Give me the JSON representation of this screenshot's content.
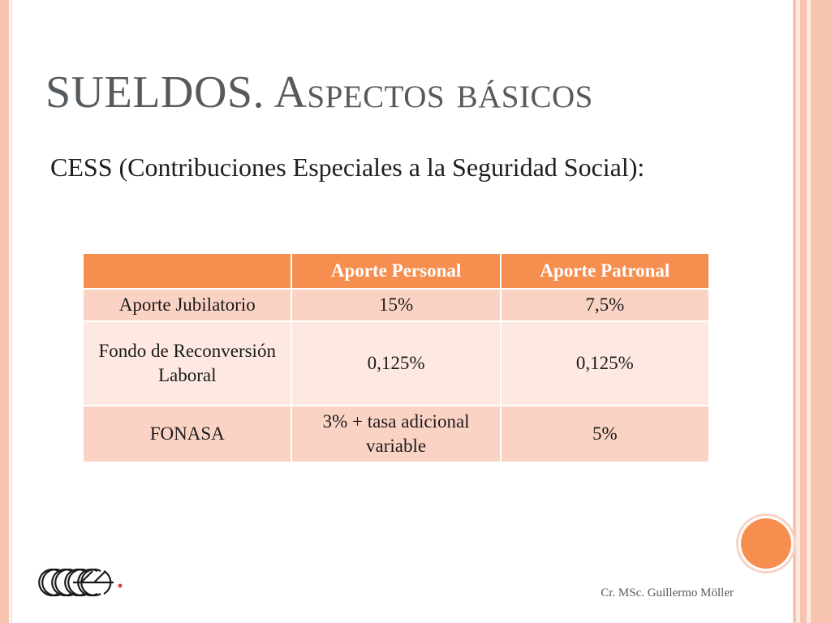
{
  "slide": {
    "title_main": "SUELDOS.",
    "title_first_letter": "A",
    "title_rest": "spectos básicos",
    "subtitle": "CESS (Contribuciones Especiales a la Seguridad Social):",
    "footer": "Cr. MSc. Guillermo Möller"
  },
  "table": {
    "headers": [
      "",
      "Aporte Personal",
      "Aporte Patronal"
    ],
    "rows": [
      [
        "Aporte Jubilatorio",
        "15%",
        "7,5%"
      ],
      [
        "Fondo de Reconversión Laboral",
        "0,125%",
        "0,125%"
      ],
      [
        "FONASA",
        "3% + tasa adicional variable",
        "5%"
      ]
    ]
  },
  "logo": {
    "icon": "ccee-logo-icon",
    "text": "CCEEE"
  },
  "colors": {
    "accent": "#f58e4e",
    "row_odd": "#fbd3c5",
    "row_even": "#fde9e2",
    "border_decor": "#f7c4b0",
    "title": "#555a5e"
  }
}
